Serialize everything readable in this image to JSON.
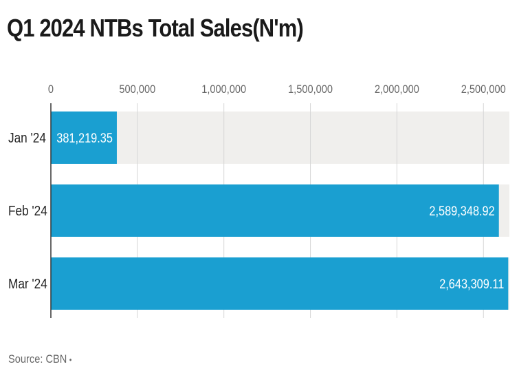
{
  "title": "Q1 2024 NTBs Total Sales(N'm)",
  "source": "Source: CBN",
  "source_mark": "•",
  "colors": {
    "bar": "#1a9fd1",
    "track": "#f0efed",
    "grid": "#d6d6d6",
    "bar_label": "#ffffff"
  },
  "chart_data": {
    "type": "bar",
    "orientation": "horizontal",
    "title": "Q1 2024 NTBs Total Sales(N'm)",
    "categories": [
      "Jan '24",
      "Feb '24",
      "Mar '24"
    ],
    "values": [
      381219.35,
      2589348.92,
      2643309.11
    ],
    "value_labels": [
      "381,219.35",
      "2,589,348.92",
      "2,643,309.11"
    ],
    "xlim": [
      0,
      2650000
    ],
    "xticks": [
      0,
      500000,
      1000000,
      1500000,
      2000000,
      2500000
    ],
    "xtick_labels": [
      "0",
      "500,000",
      "1,000,000",
      "1,500,000",
      "2,000,000",
      "2,500,000"
    ],
    "xlabel": "",
    "ylabel": "",
    "grid": true,
    "legend": "none"
  }
}
